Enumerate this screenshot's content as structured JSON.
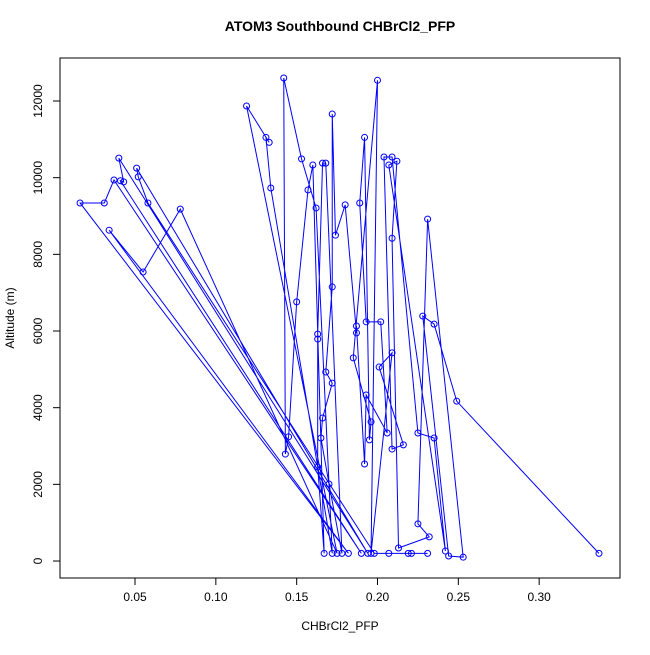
{
  "chart_data": {
    "type": "line",
    "title": "ATOM3 Southbound CHBrCl2_PFP",
    "x_label": "CHBrCl2_PFP",
    "y_label": "Altitude (m)",
    "x": [
      0.337,
      0.249,
      0.235,
      0.228,
      0.244,
      0.253,
      0.231,
      0.225,
      0.232,
      0.213,
      0.209,
      0.212,
      0.207,
      0.242,
      0.235,
      0.225,
      0.209,
      0.204,
      0.209,
      0.216,
      0.201,
      0.209,
      0.196,
      0.2,
      0.185,
      0.196,
      0.195,
      0.192,
      0.189,
      0.193,
      0.202,
      0.206,
      0.193,
      0.192,
      0.187,
      0.187,
      0.18,
      0.174,
      0.172,
      0.172,
      0.168,
      0.172,
      0.166,
      0.165,
      0.17,
      0.178,
      0.168,
      0.166,
      0.163,
      0.163,
      0.163,
      0.167,
      0.16,
      0.157,
      0.15,
      0.145,
      0.143,
      0.142,
      0.153,
      0.162,
      0.172,
      0.134,
      0.131,
      0.133,
      0.119,
      0.175,
      0.078,
      0.055,
      0.034,
      0.182,
      0.016,
      0.031,
      0.037,
      0.19,
      0.041,
      0.043,
      0.04,
      0.194,
      0.051,
      0.052,
      0.058,
      0.198,
      0.219,
      0.221,
      0.207,
      0.231
    ],
    "series": [
      {
        "color": "#0000ff",
        "values": [
          200,
          4170,
          6180,
          6390,
          130,
          100,
          8920,
          970,
          630,
          340,
          8420,
          10430,
          10330,
          260,
          3210,
          3340,
          10540,
          10540,
          2920,
          3030,
          5060,
          5430,
          200,
          12540,
          5300,
          3630,
          3160,
          11050,
          9340,
          6240,
          6240,
          3340,
          4330,
          2530,
          6130,
          5950,
          9290,
          8500,
          11660,
          7150,
          4930,
          4640,
          3730,
          3210,
          2010,
          200,
          10380,
          10380,
          5920,
          5790,
          2450,
          200,
          10330,
          9680,
          6760,
          3240,
          2790,
          12600,
          10490,
          9210,
          200,
          9730,
          11050,
          10920,
          11870,
          200,
          9180,
          7540,
          8630,
          200,
          9340,
          9340,
          9940,
          200,
          9920,
          9890,
          10510,
          200,
          10250,
          10020,
          9340,
          200,
          200,
          200,
          200,
          200
        ]
      }
    ],
    "xlim": [
      0.0036,
      0.35
    ],
    "ylim": [
      -443,
      13122
    ],
    "xticks": [
      0.05,
      {
        "value": 0.1,
        "label": "0.10"
      },
      0.15,
      {
        "value": 0.2,
        "label": "0.20"
      },
      0.25,
      {
        "value": 0.3,
        "label": "0.30"
      }
    ],
    "yticks": [
      0,
      2000,
      4000,
      6000,
      8000,
      10000,
      12000
    ]
  }
}
